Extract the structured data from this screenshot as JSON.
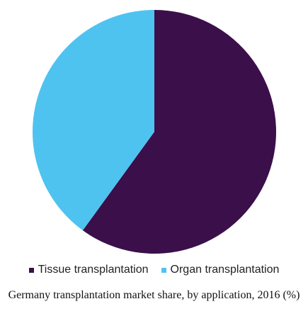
{
  "chart_data": {
    "type": "pie",
    "title": "Germany transplantation market share, by application, 2016 (%)",
    "legend_position": "bottom",
    "slices": [
      {
        "label": "Tissue transplantation",
        "value": 60,
        "color": "#3b0f4a"
      },
      {
        "label": "Organ transplantation",
        "value": 40,
        "color": "#4fc3f0"
      }
    ]
  }
}
